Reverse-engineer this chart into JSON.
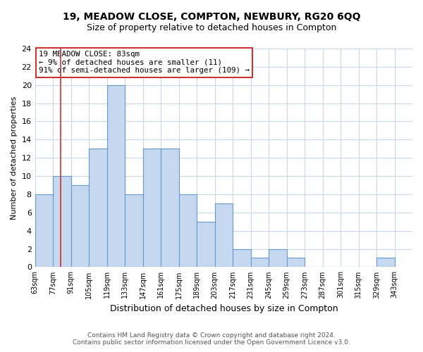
{
  "title": "19, MEADOW CLOSE, COMPTON, NEWBURY, RG20 6QQ",
  "subtitle": "Size of property relative to detached houses in Compton",
  "xlabel": "Distribution of detached houses by size in Compton",
  "ylabel": "Number of detached properties",
  "bin_edges": [
    63,
    77,
    91,
    105,
    119,
    133,
    147,
    161,
    175,
    189,
    203,
    217,
    231,
    245,
    259,
    273,
    287,
    301,
    315,
    329,
    343
  ],
  "bin_labels": [
    "63sqm",
    "77sqm",
    "91sqm",
    "105sqm",
    "119sqm",
    "133sqm",
    "147sqm",
    "161sqm",
    "175sqm",
    "189sqm",
    "203sqm",
    "217sqm",
    "231sqm",
    "245sqm",
    "259sqm",
    "273sqm",
    "287sqm",
    "301sqm",
    "315sqm",
    "329sqm",
    "343sqm"
  ],
  "counts": [
    8,
    10,
    9,
    13,
    20,
    8,
    13,
    13,
    8,
    5,
    7,
    2,
    1,
    2,
    1,
    0,
    0,
    0,
    0,
    1
  ],
  "bar_color": "#c5d8f0",
  "bar_edge_color": "#6699cc",
  "vline_x": 83,
  "vline_color": "#cc3333",
  "annotation_text": "19 MEADOW CLOSE: 83sqm\n← 9% of detached houses are smaller (11)\n91% of semi-detached houses are larger (109) →",
  "annotation_box_color": "#ffffff",
  "annotation_box_edge": "#cc3333",
  "ylim": [
    0,
    24
  ],
  "yticks": [
    0,
    2,
    4,
    6,
    8,
    10,
    12,
    14,
    16,
    18,
    20,
    22,
    24
  ],
  "footer1": "Contains HM Land Registry data © Crown copyright and database right 2024.",
  "footer2": "Contains public sector information licensed under the Open Government Licence v3.0.",
  "background_color": "#ffffff",
  "grid_color": "#c8d8e8",
  "title_fontsize": 10,
  "subtitle_fontsize": 9,
  "footer_fontsize": 6.5
}
